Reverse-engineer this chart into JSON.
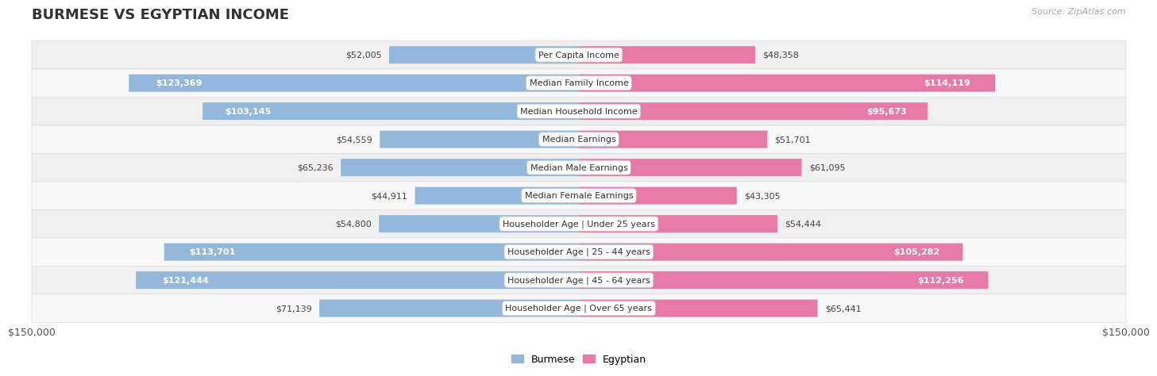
{
  "title": "BURMESE VS EGYPTIAN INCOME",
  "source": "Source: ZipAtlas.com",
  "categories": [
    "Per Capita Income",
    "Median Family Income",
    "Median Household Income",
    "Median Earnings",
    "Median Male Earnings",
    "Median Female Earnings",
    "Householder Age | Under 25 years",
    "Householder Age | 25 - 44 years",
    "Householder Age | 45 - 64 years",
    "Householder Age | Over 65 years"
  ],
  "burmese_values": [
    52005,
    123369,
    103145,
    54559,
    65236,
    44911,
    54800,
    113701,
    121444,
    71139
  ],
  "egyptian_values": [
    48358,
    114119,
    95673,
    51701,
    61095,
    43305,
    54444,
    105282,
    112256,
    65441
  ],
  "burmese_color": "#94b8dc",
  "egyptian_color": "#e87aaa",
  "max_value": 150000,
  "axis_label": "$150,000",
  "title_fontsize": 13,
  "source_fontsize": 8,
  "bar_label_fontsize": 8,
  "cat_label_fontsize": 8,
  "inside_threshold": 80000,
  "row_colors": [
    "#f0f0f0",
    "#f8f8f8"
  ],
  "fig_bg": "#ffffff"
}
